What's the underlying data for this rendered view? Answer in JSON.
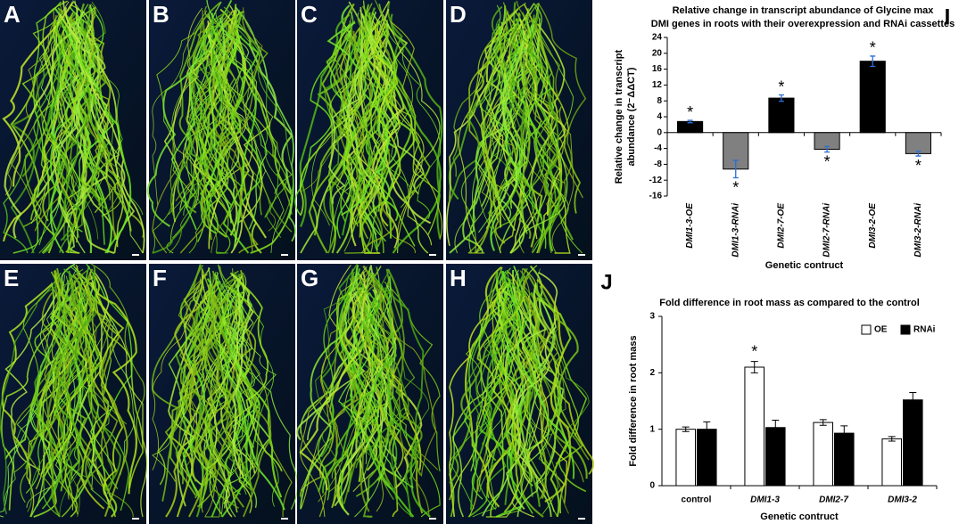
{
  "panels": [
    "A",
    "B",
    "C",
    "D",
    "E",
    "F",
    "G",
    "H"
  ],
  "chart_data": [
    {
      "type": "bar",
      "letter": "I",
      "title": [
        "Relative change in transcript abundance of Glycine max",
        "DMI genes in roots with their overexpression and RNAi cassettes"
      ],
      "ylabel": [
        "Relative change in transcript",
        "abundance (2⁻ΔΔCT)"
      ],
      "xlabel": "Genetic contruct",
      "categories": [
        "DMI1-3-OE",
        "DMI1-3-RNAi",
        "DMI2-7-OE",
        "DMI2-7-RNAi",
        "DMI3-2-OE",
        "DMI3-2-RNAi"
      ],
      "values": [
        2.8,
        -9.2,
        8.7,
        -4.2,
        18,
        -5.3
      ],
      "errors": [
        0.3,
        2.2,
        0.8,
        0.7,
        1.3,
        0.6
      ],
      "annotations": [
        "*",
        "*",
        "*",
        "*",
        "*",
        "*"
      ],
      "colors": [
        "#000000",
        "#808080",
        "#000000",
        "#808080",
        "#000000",
        "#808080"
      ],
      "error_color": "#2a6fd6",
      "ylim": [
        -16,
        24
      ],
      "yticks": [
        -16,
        -12,
        -8,
        -4,
        0,
        4,
        8,
        12,
        16,
        20,
        24
      ]
    },
    {
      "type": "grouped-bar",
      "letter": "J",
      "title": "Fold difference in root mass as compared to the control",
      "ylabel": "Fold difference in root mass",
      "xlabel": "Genetic contruct",
      "categories": [
        "control",
        "DMI1-3",
        "DMI2-7",
        "DMI3-2"
      ],
      "series": [
        {
          "name": "OE",
          "color": "#ffffff",
          "values": [
            1.0,
            2.1,
            1.12,
            0.83
          ],
          "errors": [
            0.04,
            0.1,
            0.05,
            0.04
          ],
          "annotations": [
            null,
            "*",
            null,
            null
          ]
        },
        {
          "name": "RNAi",
          "color": "#000000",
          "values": [
            1.0,
            1.03,
            0.93,
            1.52
          ],
          "errors": [
            0.13,
            0.13,
            0.13,
            0.13
          ],
          "annotations": [
            null,
            null,
            null,
            null
          ]
        }
      ],
      "error_color": "#000000",
      "legend": "top-right",
      "ylim": [
        0,
        3
      ],
      "yticks": [
        0,
        1,
        2,
        3
      ]
    }
  ]
}
